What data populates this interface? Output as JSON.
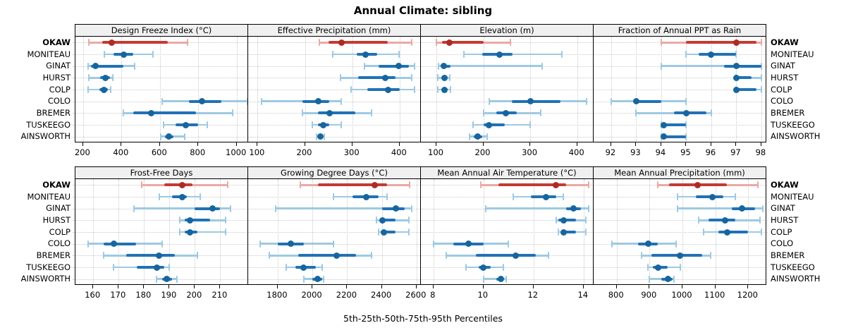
{
  "title": "Annual Climate: sibling",
  "footer": "5th-25th-50th-75th-95th Percentiles",
  "sites": [
    "OKAW",
    "MONITEAU",
    "GINAT",
    "HURST",
    "COLP",
    "COLO",
    "BREMER",
    "TUSKEEGO",
    "AINSWORTH"
  ],
  "highlight_site": "OKAW",
  "colors": {
    "highlight_main": "#C23B33",
    "highlight_light": "#EAA9A4",
    "highlight_dot": "#B02A24",
    "sibling_main": "#2171B5",
    "sibling_light": "#9EC9E2",
    "sibling_dot": "#17659E",
    "grid": "#C9C9C9",
    "header_bg": "#F0F0F0",
    "frame": "#000000"
  },
  "chart_data": {
    "type": "dot-whisker-trellis",
    "percentiles": [
      5,
      25,
      50,
      75,
      95
    ],
    "legend_note": "5th-25th-50th-75th-95th Percentiles",
    "panel_grid": [
      2,
      4
    ],
    "panels": [
      {
        "title": "Design Freeze Index (°C)",
        "xlim": [
          160,
          1060
        ],
        "ticks": [
          200,
          400,
          600,
          800,
          1000
        ],
        "values": {
          "OKAW": [
            230,
            300,
            350,
            640,
            745
          ],
          "MONITEAU": [
            310,
            360,
            410,
            460,
            565
          ],
          "GINAT": [
            225,
            240,
            265,
            410,
            470
          ],
          "HURST": [
            230,
            290,
            315,
            340,
            355
          ],
          "COLP": [
            225,
            285,
            310,
            330,
            345
          ],
          "COLO": [
            610,
            750,
            820,
            920,
            1055
          ],
          "BREMER": [
            410,
            460,
            555,
            790,
            980
          ],
          "TUSKEEGO": [
            620,
            680,
            735,
            800,
            845
          ],
          "AINSWORTH": [
            605,
            625,
            645,
            670,
            730
          ]
        }
      },
      {
        "title": "Effective Precipitation (mm)",
        "xlim": [
          80,
          445
        ],
        "ticks": [
          100,
          200,
          300,
          400
        ],
        "values": {
          "OKAW": [
            230,
            250,
            278,
            375,
            425
          ],
          "MONITEAU": [
            258,
            310,
            328,
            352,
            398
          ],
          "GINAT": [
            325,
            355,
            398,
            420,
            432
          ],
          "HURST": [
            275,
            312,
            370,
            392,
            425
          ],
          "COLP": [
            297,
            332,
            375,
            400,
            432
          ],
          "COLO": [
            108,
            195,
            228,
            252,
            277
          ],
          "BREMER": [
            195,
            228,
            252,
            307,
            340
          ],
          "TUSKEEGO": [
            215,
            228,
            238,
            252,
            277
          ],
          "AINSWORTH": [
            224,
            228,
            233,
            238,
            241
          ]
        }
      },
      {
        "title": "Elevation (m)",
        "xlim": [
          67,
          435
        ],
        "ticks": [
          100,
          200,
          300,
          400
        ],
        "values": {
          "OKAW": [
            100,
            112,
            128,
            200,
            257
          ],
          "MONITEAU": [
            158,
            197,
            235,
            262,
            368
          ],
          "GINAT": [
            104,
            110,
            116,
            130,
            325
          ],
          "HURST": [
            103,
            110,
            117,
            123,
            129
          ],
          "COLP": [
            103,
            111,
            117,
            124,
            130
          ],
          "COLO": [
            213,
            260,
            301,
            365,
            420
          ],
          "BREMER": [
            200,
            228,
            248,
            272,
            322
          ],
          "TUSKEEGO": [
            178,
            200,
            212,
            245,
            300
          ],
          "AINSWORTH": [
            170,
            180,
            188,
            198,
            208
          ]
        }
      },
      {
        "title": "Fraction of Annual PPT as Rain",
        "xlim": [
          91.3,
          98.2
        ],
        "ticks": [
          92,
          93,
          94,
          95,
          96,
          97,
          98
        ],
        "values": {
          "OKAW": [
            94,
            95,
            97,
            97.8,
            98
          ],
          "MONITEAU": [
            95,
            95.5,
            96,
            97,
            97
          ],
          "GINAT": [
            94,
            96.5,
            97,
            98,
            98
          ],
          "HURST": [
            97,
            97,
            97,
            97.6,
            98
          ],
          "COLP": [
            97,
            97,
            97,
            97.8,
            98
          ],
          "COLO": [
            92,
            92.9,
            93,
            94,
            95
          ],
          "BREMER": [
            93,
            94.5,
            95,
            95.8,
            96
          ],
          "TUSKEEGO": [
            94,
            94,
            94.1,
            95,
            95
          ],
          "AINSWORTH": [
            94,
            94,
            94.1,
            95,
            95
          ]
        }
      },
      {
        "title": "Frost-Free Days",
        "xlim": [
          153,
          221
        ],
        "ticks": [
          160,
          170,
          180,
          190,
          200,
          210
        ],
        "values": {
          "OKAW": [
            179,
            188,
            195,
            199,
            213
          ],
          "MONITEAU": [
            186,
            191,
            195,
            197,
            202
          ],
          "GINAT": [
            176,
            200,
            207,
            210,
            214
          ],
          "HURST": [
            194,
            196,
            198,
            206,
            212
          ],
          "COLP": [
            194,
            196,
            198,
            201,
            212
          ],
          "COLO": [
            158,
            164,
            168,
            177,
            187
          ],
          "BREMER": [
            164,
            173,
            186,
            192,
            201
          ],
          "TUSKEEGO": [
            168,
            177,
            185,
            188,
            190
          ],
          "AINSWORTH": [
            185,
            187,
            189,
            191,
            193
          ]
        }
      },
      {
        "title": "Growing Degree Days (°C)",
        "xlim": [
          1630,
          2625
        ],
        "ticks": [
          1800,
          2000,
          2200,
          2400,
          2600
        ],
        "values": {
          "OKAW": [
            1930,
            2030,
            2360,
            2430,
            2560
          ],
          "MONITEAU": [
            2120,
            2230,
            2310,
            2380,
            2430
          ],
          "GINAT": [
            1790,
            2400,
            2480,
            2530,
            2570
          ],
          "HURST": [
            2370,
            2390,
            2405,
            2480,
            2555
          ],
          "COLP": [
            2380,
            2395,
            2410,
            2480,
            2555
          ],
          "COLO": [
            1700,
            1800,
            1875,
            1950,
            2120
          ],
          "BREMER": [
            1750,
            1920,
            2140,
            2250,
            2340
          ],
          "TUSKEEGO": [
            1850,
            1900,
            1950,
            2020,
            2055
          ],
          "AINSWORTH": [
            1950,
            2000,
            2030,
            2055,
            2065
          ]
        }
      },
      {
        "title": "Mean Annual Air Temperature (°C)",
        "xlim": [
          7.5,
          14.4
        ],
        "ticks": [
          8,
          10,
          12,
          14
        ],
        "values": {
          "OKAW": [
            9.9,
            10.6,
            12.9,
            13.3,
            14.2
          ],
          "MONITEAU": [
            11.2,
            11.9,
            12.5,
            12.9,
            13.2
          ],
          "GINAT": [
            10.1,
            13.3,
            13.6,
            13.9,
            14.2
          ],
          "HURST": [
            12.9,
            13.0,
            13.2,
            13.7,
            14.1
          ],
          "COLP": [
            13.0,
            13.1,
            13.2,
            13.7,
            14.1
          ],
          "COLO": [
            8.0,
            8.8,
            9.4,
            10.0,
            11.0
          ],
          "BREMER": [
            8.5,
            9.7,
            11.3,
            12.1,
            12.6
          ],
          "TUSKEEGO": [
            9.3,
            9.8,
            10.0,
            10.3,
            10.8
          ],
          "AINSWORTH": [
            10.0,
            10.5,
            10.7,
            10.8,
            10.9
          ]
        }
      },
      {
        "title": "Mean Annual Precipitation (mm)",
        "xlim": [
          730,
          1255
        ],
        "ticks": [
          800,
          900,
          1000,
          1100,
          1200
        ],
        "values": {
          "OKAW": [
            925,
            960,
            1045,
            1135,
            1230
          ],
          "MONITEAU": [
            985,
            1040,
            1090,
            1125,
            1160
          ],
          "GINAT": [
            985,
            1150,
            1180,
            1220,
            1245
          ],
          "HURST": [
            1050,
            1080,
            1130,
            1160,
            1235
          ],
          "COLP": [
            1065,
            1110,
            1135,
            1200,
            1240
          ],
          "COLO": [
            785,
            865,
            897,
            925,
            980
          ],
          "BREMER": [
            875,
            905,
            993,
            1060,
            1085
          ],
          "TUSKEEGO": [
            895,
            910,
            925,
            955,
            993
          ],
          "AINSWORTH": [
            900,
            935,
            957,
            970,
            975
          ]
        }
      }
    ]
  }
}
